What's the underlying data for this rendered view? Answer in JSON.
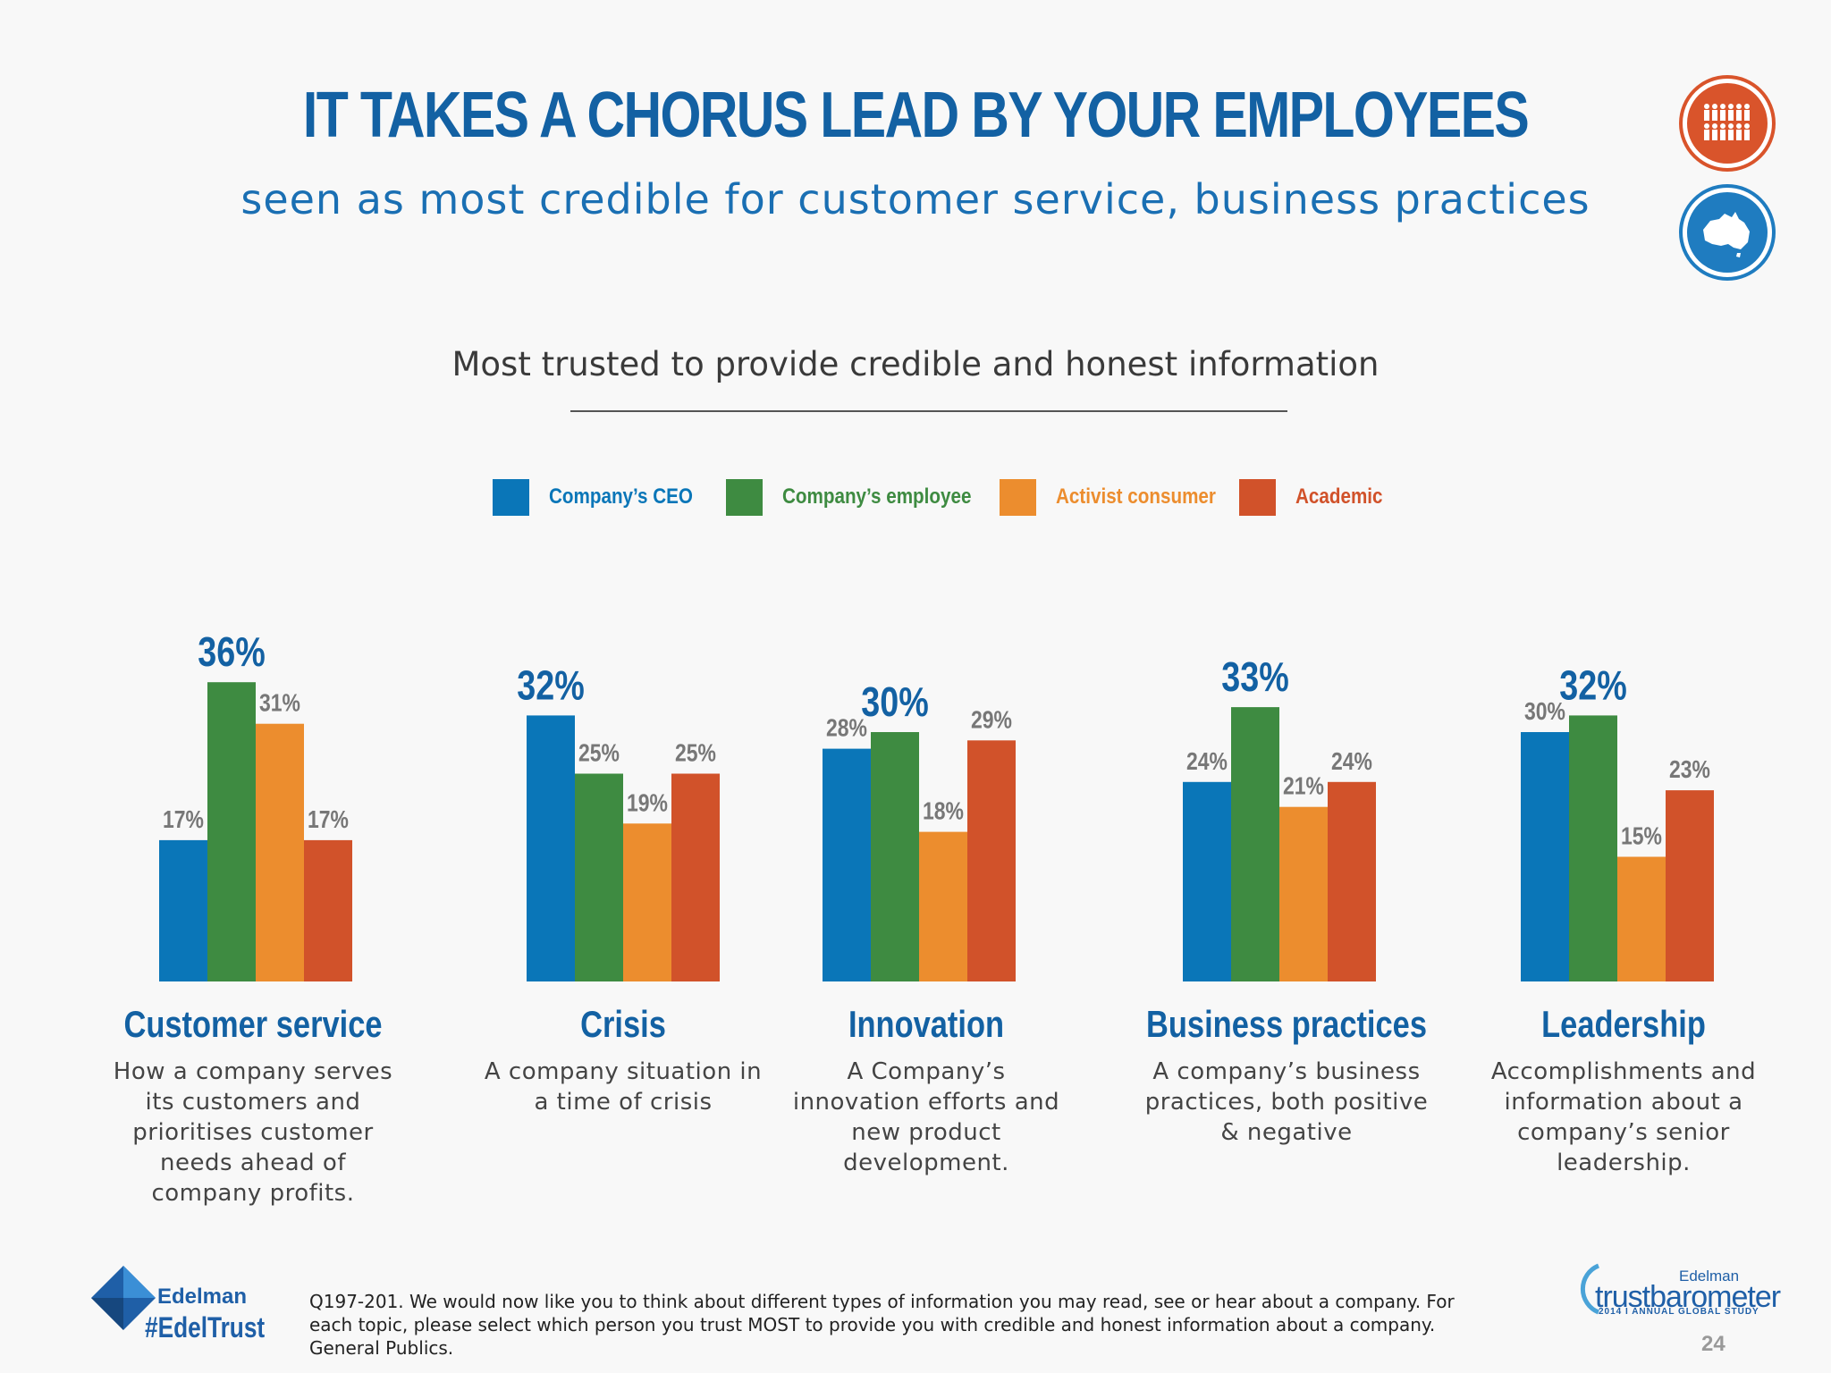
{
  "header": {
    "title": "IT TAKES A CHORUS LEAD BY YOUR EMPLOYEES",
    "subtitle": "seen as most credible for customer service, business practices"
  },
  "badges": [
    {
      "icon": "people-group-icon",
      "color": "#d9542b"
    },
    {
      "icon": "australia-map-icon",
      "color": "#1f7cc0"
    }
  ],
  "chart_data": {
    "type": "bar",
    "title": "Most trusted to provide credible and honest information",
    "series": [
      {
        "name": "Company's CEO",
        "color": "#0a76b8",
        "values": [
          17,
          32,
          28,
          24,
          30
        ]
      },
      {
        "name": "Company's employee",
        "color": "#3e8b41",
        "values": [
          36,
          25,
          30,
          33,
          32
        ]
      },
      {
        "name": "Activist consumer",
        "color": "#ec8d2e",
        "values": [
          31,
          19,
          18,
          21,
          15
        ]
      },
      {
        "name": "Academic",
        "color": "#d1522a",
        "values": [
          17,
          25,
          29,
          24,
          23
        ]
      }
    ],
    "categories": [
      "Customer service",
      "Crisis",
      "Innovation",
      "Business practices",
      "Leadership"
    ],
    "descriptions": [
      "How a company serves its customers and prioritises customer needs ahead of company profits.",
      "A company situation in a time of crisis",
      "A Company's innovation efforts and new product development.",
      "A company's business practices, both positive & negative",
      "Accomplishments and information about a company's senior leadership."
    ],
    "value_suffix": "%"
  },
  "footer": {
    "brand": "Edelman",
    "hashtag": "#EdelTrust",
    "footnote": "Q197-201. We would now like you to think about different types of information you may read, see or hear about a company. For each topic, please select which person you trust MOST to provide you with credible and honest information about a company. General Publics.",
    "tb_brand": "Edelman",
    "tb_name": "trustbarometer",
    "tb_sub": "2014 I ANNUAL GLOBAL STUDY",
    "page": "24"
  }
}
